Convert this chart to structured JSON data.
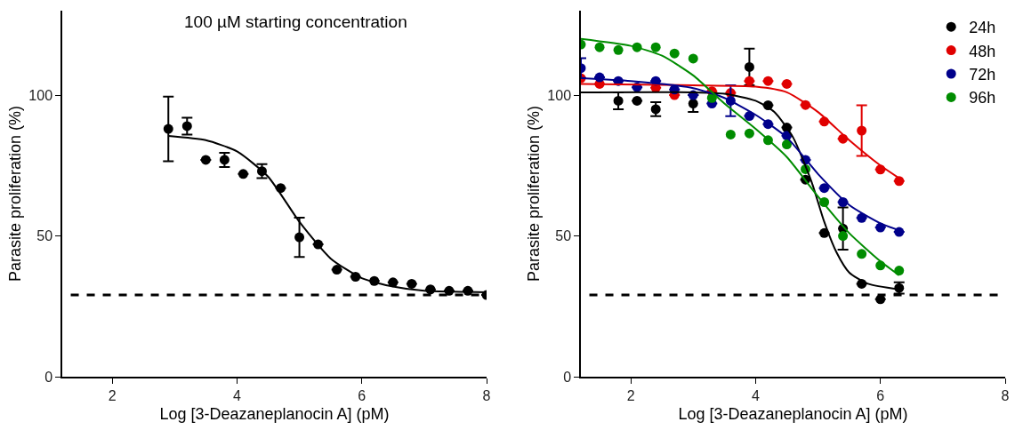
{
  "chart_data": [
    {
      "type": "scatter",
      "title": "100 µM starting concentration",
      "xlabel": "Log [3-Deazaneplanocin A] (pM)",
      "ylabel": "Parasite proliferation (%)",
      "xlim": [
        1.2,
        8
      ],
      "ylim": [
        0,
        130
      ],
      "xticks": [
        2,
        4,
        6,
        8
      ],
      "yticks": [
        0,
        50,
        100
      ],
      "grid": false,
      "legend": false,
      "series": [
        {
          "type": "scatter",
          "marker": "circle",
          "color": "#000000",
          "x": [
            2.9,
            3.2,
            3.5,
            3.8,
            4.1,
            4.4,
            4.7,
            5.0,
            5.3,
            5.6,
            5.9,
            6.2,
            6.5,
            6.8,
            7.1,
            7.4,
            7.7,
            8.0
          ],
          "values": [
            88,
            89,
            77,
            77,
            72,
            73,
            67,
            49.5,
            47,
            38,
            35.5,
            34,
            33.5,
            33,
            31,
            30.5,
            30.5,
            29
          ],
          "errors": [
            11.5,
            3,
            null,
            2.5,
            null,
            2.5,
            null,
            7,
            null,
            null,
            null,
            null,
            null,
            null,
            null,
            null,
            null,
            null
          ]
        },
        {
          "type": "line",
          "marker": "none",
          "color": "#000000",
          "x": [
            2.9,
            3.5,
            4.0,
            4.5,
            5.0,
            5.5,
            6.0,
            6.5,
            7.0,
            8.0
          ],
          "values": [
            85.5,
            84,
            80,
            71,
            55,
            42,
            35,
            32,
            30.5,
            30
          ]
        }
      ],
      "ref_lines": [
        {
          "axis": "y",
          "value": 29,
          "color": "#000000",
          "line_style": "dashed"
        }
      ]
    },
    {
      "type": "scatter",
      "xlabel": "Log [3-Deazaneplanocin A] (pM)",
      "ylabel": "Parasite proliferation (%)",
      "xlim": [
        1.2,
        8
      ],
      "ylim": [
        0,
        130
      ],
      "xticks": [
        2,
        4,
        6,
        8
      ],
      "yticks": [
        0,
        50,
        100
      ],
      "grid": false,
      "legend": "top right",
      "x": [
        1.2,
        1.5,
        1.8,
        2.1,
        2.4,
        2.7,
        3.0,
        3.3,
        3.6,
        3.9,
        4.2,
        4.5,
        4.8,
        5.1,
        5.4,
        5.7,
        6.0,
        6.3
      ],
      "series": [
        {
          "type": "scatter",
          "marker": "circle",
          "name": "24h",
          "color": "#000000",
          "values": [
            null,
            null,
            98,
            98,
            95,
            null,
            97,
            null,
            null,
            110,
            96.4,
            88.5,
            70,
            51,
            52.6,
            33,
            27.5,
            31.5
          ],
          "errors": [
            null,
            null,
            3,
            null,
            2.5,
            null,
            3,
            null,
            null,
            6.5,
            null,
            null,
            null,
            null,
            7.5,
            null,
            null,
            2
          ]
        },
        {
          "type": "scatter",
          "marker": "circle",
          "name": "48h",
          "color": "#e00000",
          "values": [
            106,
            104,
            null,
            null,
            102.6,
            100,
            null,
            101.4,
            100.8,
            105,
            105,
            104,
            96.5,
            90.6,
            84.5,
            87.4,
            73.6,
            69.5
          ],
          "errors": [
            null,
            null,
            null,
            null,
            null,
            null,
            null,
            null,
            null,
            null,
            null,
            null,
            null,
            null,
            null,
            9,
            null,
            null
          ]
        },
        {
          "type": "scatter",
          "marker": "circle",
          "name": "72h",
          "color": "#00008b",
          "values": [
            109.6,
            106.3,
            105,
            102.8,
            105,
            102,
            100,
            97,
            98,
            92.6,
            89.7,
            85.6,
            77,
            67,
            62,
            56.4,
            53,
            51.4
          ],
          "errors": [
            3.5,
            null,
            null,
            null,
            null,
            null,
            null,
            null,
            5.5,
            null,
            null,
            null,
            null,
            null,
            null,
            null,
            null,
            null
          ]
        },
        {
          "type": "scatter",
          "marker": "circle",
          "name": "96h",
          "color": "#008c00",
          "values": [
            118,
            117,
            116,
            117,
            117,
            114.8,
            113,
            99,
            86,
            86.4,
            84,
            82.5,
            73.7,
            62,
            50,
            43.6,
            39.5,
            37.7
          ]
        },
        {
          "type": "line",
          "marker": "none",
          "color": "#000000",
          "x": [
            1.2,
            3.0,
            3.5,
            4.0,
            4.3,
            4.6,
            4.9,
            5.1,
            5.3,
            5.5,
            5.8,
            6.3
          ],
          "values": [
            101,
            101,
            100.5,
            98,
            94,
            85,
            69,
            55,
            44,
            37,
            33,
            31
          ]
        },
        {
          "type": "line",
          "marker": "none",
          "color": "#e00000",
          "x": [
            1.2,
            3.0,
            4.0,
            4.5,
            5.0,
            5.5,
            6.0,
            6.3
          ],
          "values": [
            104,
            103.5,
            103,
            101,
            94,
            84,
            75,
            70.5
          ]
        },
        {
          "type": "line",
          "marker": "none",
          "color": "#00008b",
          "x": [
            1.2,
            2.0,
            3.0,
            3.5,
            4.0,
            4.5,
            5.0,
            5.5,
            6.0,
            6.3
          ],
          "values": [
            106,
            105,
            102.5,
            99,
            93,
            85,
            72,
            61,
            54.5,
            52
          ]
        },
        {
          "type": "line",
          "marker": "none",
          "color": "#008c00",
          "x": [
            1.2,
            2.0,
            2.5,
            3.0,
            3.5,
            4.0,
            4.5,
            5.0,
            5.5,
            6.0,
            6.3
          ],
          "values": [
            120,
            117.5,
            114,
            107,
            97,
            88,
            78,
            64,
            51,
            41,
            36
          ]
        }
      ],
      "ref_lines": [
        {
          "axis": "y",
          "value": 29,
          "color": "#000000",
          "line_style": "dashed"
        }
      ]
    }
  ]
}
